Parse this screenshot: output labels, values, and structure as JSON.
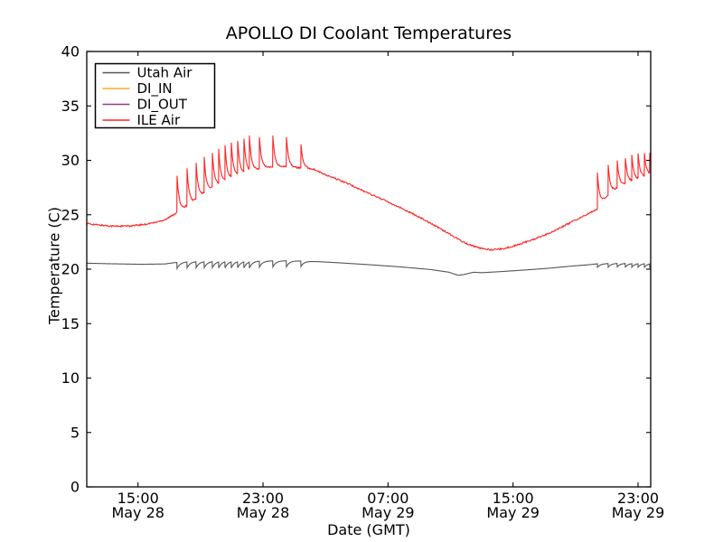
{
  "chart_data": {
    "type": "line",
    "title": "APOLLO DI Coolant Temperatures",
    "xlabel": "Date (GMT)",
    "ylabel": "Temperature (C)",
    "ylim": [
      0,
      40
    ],
    "yticks": [
      0,
      5,
      10,
      15,
      20,
      25,
      30,
      35,
      40
    ],
    "t_span": 36.09,
    "xticks": [
      {
        "t": 3.28,
        "time": "15:00",
        "date": "May 28"
      },
      {
        "t": 11.28,
        "time": "23:00",
        "date": "May 28"
      },
      {
        "t": 19.28,
        "time": "07:00",
        "date": "May 29"
      },
      {
        "t": 27.28,
        "time": "15:00",
        "date": "May 29"
      },
      {
        "t": 35.28,
        "time": "23:00",
        "date": "May 29"
      }
    ],
    "legend": {
      "position": "upper left",
      "labels": [
        "Utah Air",
        "DI_IN",
        "DI_OUT",
        "ILE Air"
      ]
    },
    "series": [
      {
        "name": "Utah Air",
        "color": "#555555",
        "noise": 0,
        "tau": 0.2,
        "baseline": [
          [
            0,
            20.55
          ],
          [
            1.5,
            20.5
          ],
          [
            3.5,
            20.45
          ],
          [
            5.0,
            20.48
          ],
          [
            5.6,
            20.6
          ],
          [
            6.5,
            20.7
          ],
          [
            9,
            20.75
          ],
          [
            13,
            20.78
          ],
          [
            13.9,
            20.75
          ],
          [
            15,
            20.68
          ],
          [
            16,
            20.6
          ],
          [
            18,
            20.42
          ],
          [
            20,
            20.22
          ],
          [
            22,
            19.97
          ],
          [
            23.2,
            19.72
          ],
          [
            23.75,
            19.44
          ],
          [
            24.1,
            19.5
          ],
          [
            24.75,
            19.72
          ],
          [
            25.3,
            19.68
          ],
          [
            26.5,
            19.78
          ],
          [
            28,
            19.92
          ],
          [
            29.5,
            20.08
          ],
          [
            31,
            20.28
          ],
          [
            32.2,
            20.42
          ],
          [
            32.7,
            20.5
          ],
          [
            34,
            20.55
          ],
          [
            36.09,
            20.55
          ]
        ],
        "dips": [
          {
            "t": 5.78,
            "depth": 0.55
          },
          {
            "t": 6.42,
            "depth": 0.55
          },
          {
            "t": 7.0,
            "depth": 0.55
          },
          {
            "t": 7.52,
            "depth": 0.55
          },
          {
            "t": 8.04,
            "depth": 0.55
          },
          {
            "t": 8.44,
            "depth": 0.55
          },
          {
            "t": 8.85,
            "depth": 0.55
          },
          {
            "t": 9.25,
            "depth": 0.55
          },
          {
            "t": 9.66,
            "depth": 0.55
          },
          {
            "t": 10.06,
            "depth": 0.55
          },
          {
            "t": 10.41,
            "depth": 0.55
          },
          {
            "t": 11.05,
            "depth": 0.55
          },
          {
            "t": 11.91,
            "depth": 0.55
          },
          {
            "t": 12.78,
            "depth": 0.55
          },
          {
            "t": 13.71,
            "depth": 0.5
          },
          {
            "t": 32.68,
            "depth": 0.32
          },
          {
            "t": 33.37,
            "depth": 0.32
          },
          {
            "t": 33.95,
            "depth": 0.32
          },
          {
            "t": 34.47,
            "depth": 0.32
          },
          {
            "t": 34.88,
            "depth": 0.32
          },
          {
            "t": 35.28,
            "depth": 0.32
          },
          {
            "t": 35.69,
            "depth": 0.32
          },
          {
            "t": 36.03,
            "depth": 0.32
          }
        ]
      },
      {
        "name": "DI_IN",
        "color": "#ffaa22",
        "flat": 0
      },
      {
        "name": "DI_OUT",
        "color": "#913d91",
        "flat": 0
      },
      {
        "name": "ILE Air",
        "color": "#ff2222",
        "noise": 0.07,
        "tau": 0.13,
        "baseline": [
          [
            0,
            24.2
          ],
          [
            0.8,
            24.05
          ],
          [
            1.8,
            23.95
          ],
          [
            2.8,
            23.97
          ],
          [
            3.6,
            24.1
          ],
          [
            4.4,
            24.3
          ],
          [
            5.0,
            24.55
          ],
          [
            5.5,
            24.95
          ],
          [
            5.78,
            25.25
          ],
          [
            6.4,
            25.8
          ],
          [
            7.0,
            26.4
          ],
          [
            7.5,
            26.95
          ],
          [
            8.0,
            27.45
          ],
          [
            8.9,
            28.15
          ],
          [
            9.7,
            28.65
          ],
          [
            10.4,
            28.95
          ],
          [
            11.1,
            29.25
          ],
          [
            11.9,
            29.4
          ],
          [
            12.8,
            29.4
          ],
          [
            13.7,
            29.3
          ],
          [
            14.5,
            29.2
          ],
          [
            15.3,
            28.65
          ],
          [
            16.5,
            28.0
          ],
          [
            17.6,
            27.25
          ],
          [
            18.8,
            26.5
          ],
          [
            20,
            25.7
          ],
          [
            21.2,
            24.85
          ],
          [
            22.3,
            24.0
          ],
          [
            23.5,
            23.0
          ],
          [
            24.3,
            22.35
          ],
          [
            25.1,
            21.95
          ],
          [
            25.9,
            21.78
          ],
          [
            26.7,
            21.9
          ],
          [
            27.5,
            22.2
          ],
          [
            28.5,
            22.7
          ],
          [
            29.6,
            23.3
          ],
          [
            30.7,
            24.1
          ],
          [
            31.7,
            24.8
          ],
          [
            32.3,
            25.25
          ],
          [
            32.68,
            25.55
          ],
          [
            33.1,
            26.4
          ],
          [
            33.6,
            27.1
          ],
          [
            34.2,
            27.7
          ],
          [
            34.9,
            28.1
          ],
          [
            35.5,
            28.4
          ],
          [
            36.09,
            28.7
          ]
        ],
        "spikes": [
          {
            "t": 5.78,
            "peak": 28.6
          },
          {
            "t": 6.42,
            "peak": 29.2
          },
          {
            "t": 7.0,
            "peak": 29.7
          },
          {
            "t": 7.52,
            "peak": 30.2
          },
          {
            "t": 8.04,
            "peak": 30.6
          },
          {
            "t": 8.44,
            "peak": 30.9
          },
          {
            "t": 8.85,
            "peak": 31.2
          },
          {
            "t": 9.25,
            "peak": 31.5
          },
          {
            "t": 9.66,
            "peak": 31.7
          },
          {
            "t": 10.06,
            "peak": 31.9
          },
          {
            "t": 10.41,
            "peak": 32.0
          },
          {
            "t": 11.05,
            "peak": 32.1
          },
          {
            "t": 11.91,
            "peak": 32.2
          },
          {
            "t": 12.78,
            "peak": 32.2
          },
          {
            "t": 13.71,
            "peak": 31.4
          },
          {
            "t": 32.68,
            "peak": 28.9
          },
          {
            "t": 33.37,
            "peak": 29.5
          },
          {
            "t": 33.95,
            "peak": 29.9
          },
          {
            "t": 34.47,
            "peak": 30.2
          },
          {
            "t": 34.88,
            "peak": 30.4
          },
          {
            "t": 35.28,
            "peak": 30.5
          },
          {
            "t": 35.69,
            "peak": 30.6
          },
          {
            "t": 36.03,
            "peak": 30.6
          }
        ]
      }
    ]
  }
}
